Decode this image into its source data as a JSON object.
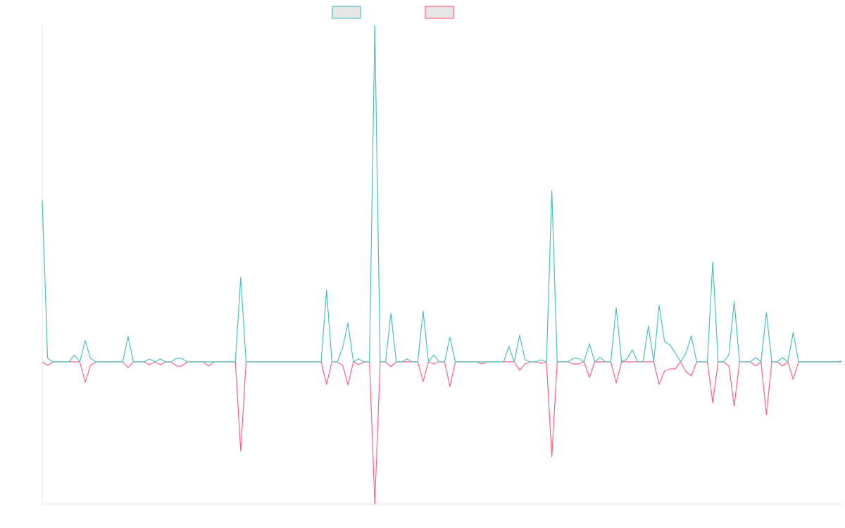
{
  "chart_data": {
    "type": "line",
    "categories": [
      null,
      null,
      null,
      null,
      null,
      null,
      null,
      null,
      null,
      null,
      null,
      null,
      null,
      null,
      null,
      null,
      null,
      null,
      null,
      null,
      null,
      null,
      null,
      null,
      null,
      null,
      null,
      null,
      null,
      null,
      null,
      null,
      null,
      null,
      null,
      null,
      null,
      null,
      null,
      null,
      null,
      null,
      null,
      null,
      null,
      null,
      null,
      null,
      null,
      null,
      null,
      null,
      null,
      null,
      null,
      null,
      null,
      null,
      null,
      null,
      null,
      null,
      null,
      null,
      null,
      null,
      null,
      null,
      null,
      null,
      null,
      null,
      null,
      null,
      null,
      null,
      null,
      null,
      null,
      null,
      null,
      null,
      null,
      null,
      null,
      null,
      null,
      null,
      null,
      null,
      null,
      null,
      null,
      null,
      null,
      null,
      null,
      null,
      null,
      null,
      null,
      null,
      null,
      null,
      null,
      null,
      null,
      null,
      null,
      null,
      null,
      null,
      null,
      null,
      null,
      null,
      null,
      null,
      null,
      null,
      null,
      null,
      null,
      null,
      null,
      null,
      null,
      null,
      null,
      null,
      null,
      null,
      null,
      null,
      null,
      null,
      null,
      null,
      null,
      null,
      null,
      null,
      null,
      null,
      null,
      null,
      null,
      null,
      null,
      null
    ],
    "series": [
      {
        "color": "#4bc0c0",
        "values": [
          230,
          5,
          0,
          0,
          0,
          0,
          10,
          0,
          30,
          5,
          0,
          0,
          0,
          0,
          0,
          0,
          36,
          0,
          0,
          0,
          4,
          0,
          4,
          0,
          0,
          5,
          5,
          0,
          0,
          0,
          0,
          0,
          0,
          0,
          0,
          0,
          0,
          120,
          0,
          0,
          0,
          0,
          0,
          0,
          0,
          0,
          0,
          0,
          0,
          0,
          0,
          0,
          0,
          102,
          0,
          0,
          20,
          55,
          0,
          4,
          0,
          0,
          478,
          0,
          0,
          69,
          0,
          0,
          4,
          0,
          0,
          72,
          0,
          10,
          0,
          0,
          35,
          0,
          0,
          0,
          0,
          0,
          0,
          0,
          0,
          0,
          0,
          22,
          0,
          38,
          3,
          0,
          0,
          3,
          0,
          243,
          0,
          0,
          0,
          5,
          5,
          0,
          26,
          0,
          6,
          0,
          0,
          77,
          0,
          4,
          17,
          0,
          0,
          51,
          0,
          80,
          29,
          24,
          13,
          0,
          12,
          37,
          0,
          0,
          0,
          142,
          0,
          0,
          10,
          86,
          0,
          0,
          0,
          6,
          0,
          70,
          0,
          0,
          6,
          0,
          42,
          0,
          0,
          0,
          0,
          0,
          0,
          0,
          0,
          1
        ]
      },
      {
        "color": "#ff6384",
        "values": [
          0,
          -5,
          0,
          0,
          0,
          0,
          0,
          0,
          -29,
          -5,
          0,
          0,
          0,
          0,
          0,
          0,
          -8,
          0,
          0,
          0,
          -4,
          0,
          -4,
          0,
          0,
          -6,
          -6,
          0,
          0,
          0,
          0,
          -6,
          0,
          0,
          0,
          0,
          0,
          -127,
          0,
          0,
          0,
          0,
          0,
          0,
          0,
          0,
          0,
          0,
          0,
          0,
          0,
          0,
          0,
          -32,
          0,
          0,
          -5,
          -33,
          0,
          -4,
          0,
          0,
          -202,
          0,
          0,
          -7,
          0,
          0,
          0,
          0,
          0,
          -28,
          0,
          -3,
          0,
          0,
          -35,
          0,
          0,
          0,
          0,
          0,
          -3,
          0,
          0,
          0,
          0,
          0,
          0,
          -12,
          -3,
          0,
          0,
          -2,
          0,
          -135,
          0,
          0,
          0,
          -3,
          -3,
          0,
          -22,
          0,
          0,
          0,
          0,
          -30,
          0,
          0,
          0,
          0,
          0,
          0,
          0,
          -32,
          -13,
          -10,
          -10,
          0,
          -14,
          -20,
          0,
          0,
          0,
          -58,
          0,
          0,
          -6,
          -63,
          0,
          0,
          0,
          -6,
          0,
          -75,
          0,
          0,
          -6,
          0,
          -25,
          0,
          0,
          0,
          0,
          0,
          0,
          0,
          0,
          0
        ]
      }
    ],
    "ylim": [
      -202,
      478
    ],
    "grid": false
  }
}
